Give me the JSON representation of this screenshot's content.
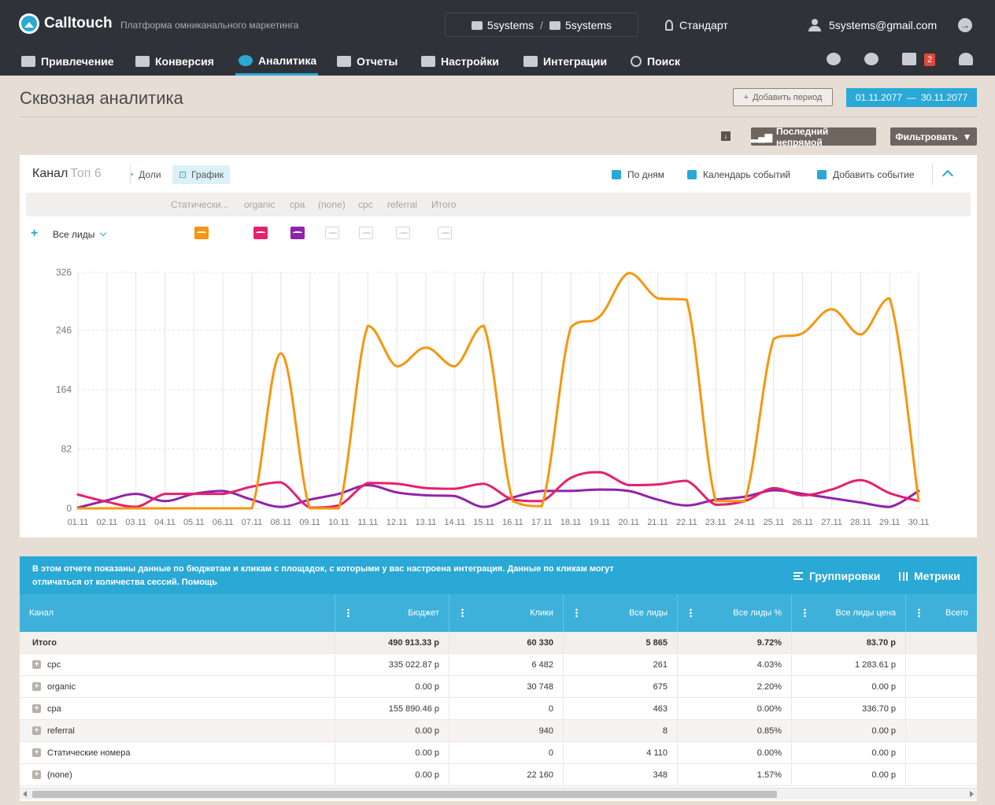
{
  "header": {
    "logo": "Calltouch",
    "tagline": "Платформа омниканального маркетинга",
    "account_from": "5systems",
    "account_to": "5systems",
    "plan": "Стандарт",
    "user_email": "5systems@gmail.com",
    "notifications_count": "2"
  },
  "nav": {
    "items": [
      {
        "label": "Привлечение",
        "icon": "megaphone-icon"
      },
      {
        "label": "Конверсия",
        "icon": "conversion-icon"
      },
      {
        "label": "Аналитика",
        "icon": "pie-chart-icon",
        "active": true
      },
      {
        "label": "Отчеты",
        "icon": "line-chart-icon"
      },
      {
        "label": "Настройки",
        "icon": "sliders-icon"
      },
      {
        "label": "Интеграции",
        "icon": "puzzle-icon"
      },
      {
        "label": "Поиск",
        "icon": "search-icon"
      }
    ]
  },
  "page": {
    "title": "Сквозная аналитика",
    "add_period": "Добавить период",
    "date_from": "01.11.2077",
    "date_sep": "—",
    "date_to": "30.11.2077",
    "attribution": "Последний непрямой",
    "filter": "Фильтровать"
  },
  "chart_card": {
    "title": "Канал",
    "subtitle": "Топ 6",
    "tab_shares": "Доли",
    "tab_graph": "График",
    "by_days": "По дням",
    "events_calendar": "Календарь событий",
    "add_event": "Добавить событие",
    "metric_select": "Все лиды",
    "series_names": [
      "Статически...",
      "organic",
      "cpa",
      "(none)",
      "cpc",
      "referral",
      "Итого"
    ],
    "series_colors": [
      "#f5960f",
      null,
      "#e6206e",
      "#8e24aa",
      null,
      null,
      null
    ],
    "series_enabled": [
      true,
      false,
      true,
      true,
      false,
      false,
      false
    ]
  },
  "chart_data": {
    "type": "line",
    "x": [
      "01.11",
      "02.11",
      "03.11",
      "04.11",
      "05.11",
      "06.11",
      "07.11",
      "08.11",
      "09.11",
      "10.11",
      "11.11",
      "12.11",
      "13.11",
      "14.11",
      "15.11",
      "16.11",
      "17.11",
      "18.11",
      "19.11",
      "20.11",
      "21.11",
      "22.11",
      "23.11",
      "24.11",
      "25.11",
      "26.11",
      "27.11",
      "28.11",
      "29.11",
      "30.11"
    ],
    "ylim": [
      0,
      326
    ],
    "yticks": [
      "0",
      "82",
      "164",
      "246",
      "326"
    ],
    "grid": true,
    "series": [
      {
        "name": "Статически...",
        "color": "#f5960f",
        "values": [
          0,
          0,
          0,
          0,
          0,
          0,
          0,
          214,
          0,
          0,
          252,
          196,
          222,
          196,
          252,
          10,
          3,
          250,
          265,
          325,
          290,
          288,
          10,
          10,
          234,
          242,
          275,
          240,
          290,
          10
        ]
      },
      {
        "name": "cpa",
        "color": "#e6206e",
        "values": [
          19,
          9,
          2,
          20,
          20,
          20,
          30,
          36,
          1,
          4,
          35,
          34,
          28,
          27,
          34,
          12,
          10,
          42,
          50,
          32,
          33,
          38,
          5,
          10,
          28,
          18,
          26,
          39,
          21,
          10
        ]
      },
      {
        "name": "(none)",
        "color": "#8e24aa",
        "values": [
          1,
          11,
          20,
          10,
          20,
          24,
          12,
          2,
          12,
          20,
          32,
          22,
          18,
          17,
          2,
          15,
          24,
          24,
          26,
          24,
          12,
          4,
          12,
          16,
          25,
          20,
          14,
          8,
          2,
          24
        ]
      }
    ]
  },
  "table": {
    "info": "В этом отчете показаны данные по бюджетам и кликам с площадок, с которыми у вас настроена интеграция. Данные по кликам могут отличаться от количества сессий. Помощь",
    "groupings": "Группировки",
    "metrics": "Метрики",
    "columns": [
      "Канал",
      "Бюджет",
      "Клики",
      "Все лиды",
      "Все лиды %",
      "Все лиды цена",
      "Всего"
    ],
    "total_label": "Итого",
    "total": [
      "490 913.33 р",
      "60 330",
      "5 865",
      "9.72%",
      "83.70 р",
      ""
    ],
    "rows": [
      {
        "name": "cpc",
        "values": [
          "335 022.87 р",
          "6 482",
          "261",
          "4.03%",
          "1 283.61 р",
          ""
        ]
      },
      {
        "name": "organic",
        "values": [
          "0.00 р",
          "30 748",
          "675",
          "2.20%",
          "0.00 р",
          ""
        ]
      },
      {
        "name": "cpa",
        "values": [
          "155 890.46 р",
          "0",
          "463",
          "0.00%",
          "336.70 р",
          ""
        ]
      },
      {
        "name": "referral",
        "values": [
          "0.00 р",
          "940",
          "8",
          "0.85%",
          "0.00 р",
          ""
        ]
      },
      {
        "name": "Статические номера",
        "values": [
          "0.00 р",
          "0",
          "4 110",
          "0.00%",
          "0.00 р",
          ""
        ]
      },
      {
        "name": "(none)",
        "values": [
          "0.00 р",
          "22 160",
          "348",
          "1.57%",
          "0.00 р",
          ""
        ]
      }
    ]
  }
}
